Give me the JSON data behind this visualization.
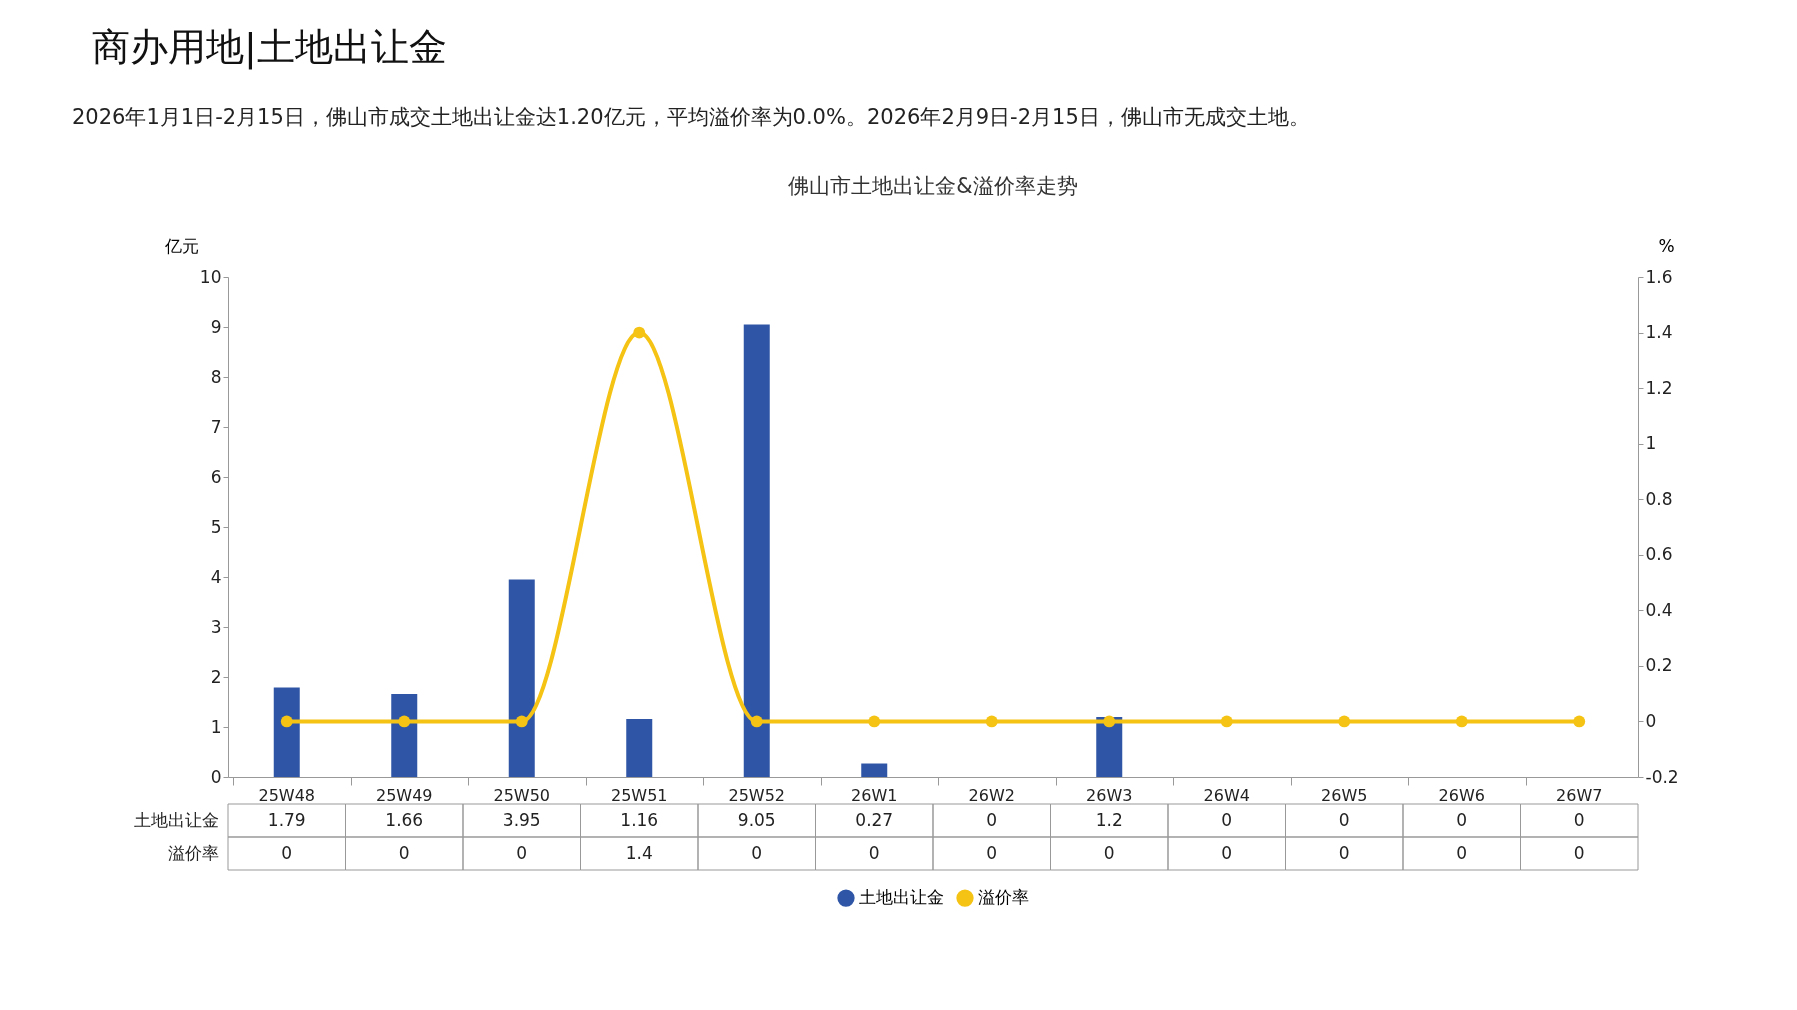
{
  "chart_data": {
    "type": "bar",
    "title": "佛山市土地出让金&溢价率走势",
    "annotations": [
      "商办用地|土地出让金",
      "2026年1月1日-2月15日，佛山市成交土地出让金达1.20亿元，平均溢价率为0.0%。2026年2月9日-2月15日，佛山市无成交土地。"
    ],
    "ylabel": "亿元",
    "y2label": "%",
    "categories": [
      "25W48",
      "25W49",
      "25W50",
      "25W51",
      "25W52",
      "26W1",
      "26W2",
      "26W3",
      "26W4",
      "26W5",
      "26W6",
      "26W7"
    ],
    "series": [
      {
        "name": "土地出让金",
        "color": "#2f56a6",
        "values": [
          1.79,
          1.66,
          3.95,
          1.16,
          9.05,
          0.27,
          0,
          1.2,
          0,
          0,
          0,
          0
        ]
      },
      {
        "name": "溢价率",
        "type": "line",
        "axis": "y2",
        "color": "#f5c314",
        "values": [
          0,
          0,
          0,
          1.4,
          0,
          0,
          0,
          0,
          0,
          0,
          0,
          0
        ]
      }
    ],
    "ylim": [
      0,
      10
    ],
    "yticks": [
      0,
      1,
      2,
      3,
      4,
      5,
      6,
      7,
      8,
      9,
      10
    ],
    "y2lim": [
      -0.2,
      1.6
    ],
    "y2ticks": [
      -0.2,
      0,
      0.2,
      0.4,
      0.6,
      0.8,
      1,
      1.2,
      1.4,
      1.6
    ],
    "data_labels": true,
    "legend": "bottom",
    "marker": "circle",
    "line_style": "solid",
    "grid": false
  }
}
